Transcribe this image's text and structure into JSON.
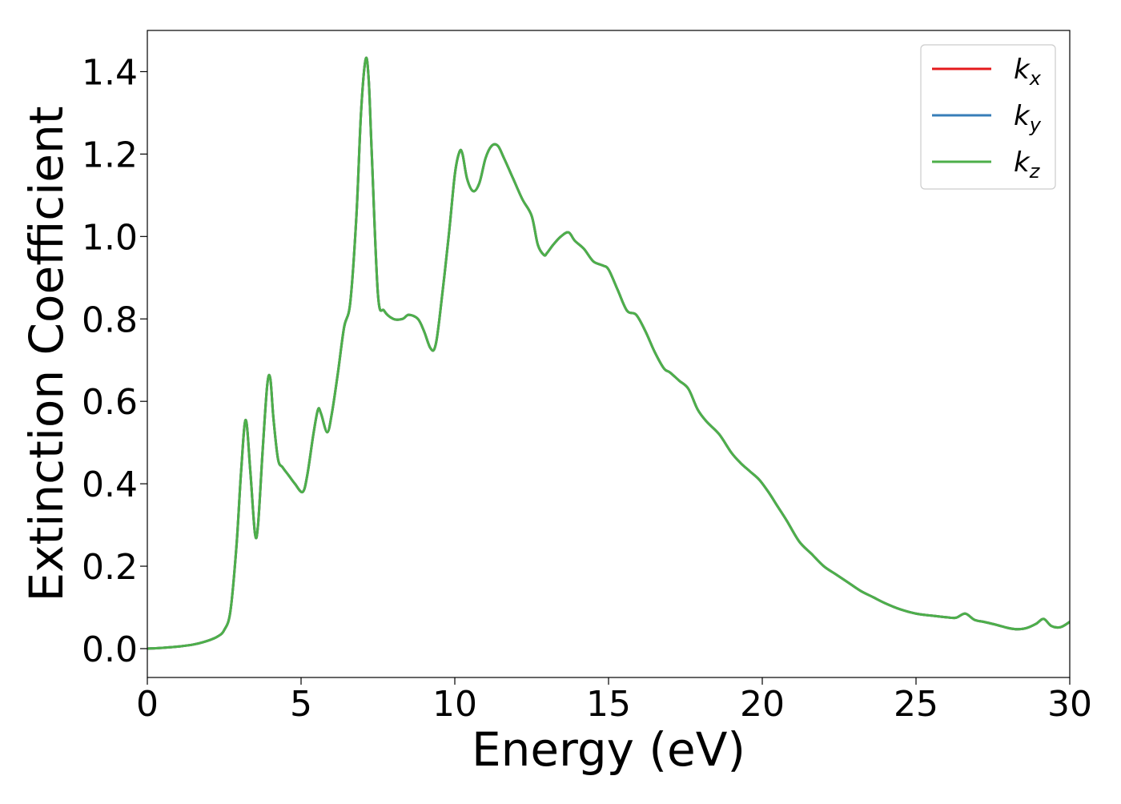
{
  "chart_data": {
    "type": "line",
    "title": "",
    "xlabel": "Energy (eV)",
    "ylabel": "Extinction Coefficient",
    "xlim": [
      0,
      30
    ],
    "ylim": [
      -0.07,
      1.5
    ],
    "xticks": [
      0,
      5,
      10,
      15,
      20,
      25,
      30
    ],
    "xtick_labels": [
      "0",
      "5",
      "10",
      "15",
      "20",
      "25",
      "30"
    ],
    "yticks": [
      0.0,
      0.2,
      0.4,
      0.6,
      0.8,
      1.0,
      1.2,
      1.4
    ],
    "ytick_labels": [
      "0.0",
      "0.2",
      "0.4",
      "0.6",
      "0.8",
      "1.0",
      "1.2",
      "1.4"
    ],
    "grid": false,
    "legend_position": "top-right",
    "legend": [
      {
        "base": "k",
        "sub": "x",
        "color": "#e41a1c"
      },
      {
        "base": "k",
        "sub": "y",
        "color": "#377eb8"
      },
      {
        "base": "k",
        "sub": "z",
        "color": "#4daf4a"
      }
    ],
    "x": [
      0.0,
      0.5,
      1.0,
      1.5,
      2.0,
      2.3,
      2.5,
      2.7,
      2.9,
      3.05,
      3.2,
      3.35,
      3.5,
      3.6,
      3.75,
      3.9,
      4.0,
      4.1,
      4.25,
      4.4,
      4.6,
      4.8,
      5.05,
      5.2,
      5.4,
      5.55,
      5.65,
      5.85,
      6.0,
      6.2,
      6.4,
      6.6,
      6.8,
      6.95,
      7.1,
      7.2,
      7.3,
      7.5,
      7.7,
      8.0,
      8.3,
      8.5,
      8.8,
      9.0,
      9.2,
      9.35,
      9.5,
      9.8,
      10.0,
      10.15,
      10.25,
      10.4,
      10.6,
      10.8,
      11.0,
      11.2,
      11.4,
      11.6,
      11.9,
      12.2,
      12.5,
      12.7,
      12.9,
      13.0,
      13.2,
      13.45,
      13.7,
      13.9,
      14.2,
      14.5,
      14.8,
      15.0,
      15.3,
      15.6,
      15.9,
      16.2,
      16.5,
      16.8,
      17.0,
      17.3,
      17.6,
      17.9,
      18.2,
      18.6,
      19.0,
      19.3,
      19.6,
      19.9,
      20.2,
      20.5,
      20.8,
      21.2,
      21.6,
      22.0,
      22.4,
      22.8,
      23.2,
      23.6,
      24.0,
      24.5,
      25.0,
      25.5,
      26.0,
      26.3,
      26.6,
      26.9,
      27.2,
      27.6,
      28.0,
      28.3,
      28.6,
      28.9,
      29.15,
      29.4,
      29.7,
      30.0
    ],
    "series": [
      {
        "name": "k_x",
        "color": "#e41a1c",
        "values": [
          0.0,
          0.002,
          0.005,
          0.01,
          0.02,
          0.03,
          0.045,
          0.09,
          0.25,
          0.43,
          0.555,
          0.43,
          0.28,
          0.3,
          0.48,
          0.64,
          0.655,
          0.56,
          0.46,
          0.44,
          0.42,
          0.4,
          0.38,
          0.42,
          0.52,
          0.58,
          0.57,
          0.525,
          0.57,
          0.67,
          0.78,
          0.84,
          1.05,
          1.3,
          1.43,
          1.38,
          1.2,
          0.86,
          0.82,
          0.8,
          0.8,
          0.81,
          0.8,
          0.77,
          0.73,
          0.73,
          0.8,
          1.0,
          1.15,
          1.205,
          1.2,
          1.14,
          1.11,
          1.13,
          1.19,
          1.22,
          1.22,
          1.19,
          1.14,
          1.09,
          1.05,
          0.98,
          0.955,
          0.96,
          0.98,
          1.0,
          1.01,
          0.99,
          0.97,
          0.94,
          0.93,
          0.92,
          0.87,
          0.82,
          0.81,
          0.77,
          0.72,
          0.68,
          0.67,
          0.65,
          0.63,
          0.58,
          0.55,
          0.52,
          0.475,
          0.45,
          0.43,
          0.41,
          0.38,
          0.345,
          0.31,
          0.26,
          0.23,
          0.2,
          0.18,
          0.16,
          0.14,
          0.125,
          0.11,
          0.095,
          0.085,
          0.08,
          0.076,
          0.075,
          0.085,
          0.07,
          0.065,
          0.058,
          0.05,
          0.047,
          0.05,
          0.06,
          0.072,
          0.055,
          0.052,
          0.065
        ]
      },
      {
        "name": "k_y",
        "color": "#377eb8",
        "values": [
          0.0,
          0.002,
          0.005,
          0.01,
          0.02,
          0.03,
          0.045,
          0.09,
          0.25,
          0.43,
          0.555,
          0.43,
          0.28,
          0.3,
          0.48,
          0.64,
          0.655,
          0.56,
          0.46,
          0.44,
          0.42,
          0.4,
          0.38,
          0.42,
          0.52,
          0.58,
          0.57,
          0.525,
          0.57,
          0.67,
          0.78,
          0.84,
          1.05,
          1.3,
          1.43,
          1.38,
          1.2,
          0.86,
          0.82,
          0.8,
          0.8,
          0.81,
          0.8,
          0.77,
          0.73,
          0.73,
          0.8,
          1.0,
          1.15,
          1.205,
          1.2,
          1.14,
          1.11,
          1.13,
          1.19,
          1.22,
          1.22,
          1.19,
          1.14,
          1.09,
          1.05,
          0.98,
          0.955,
          0.96,
          0.98,
          1.0,
          1.01,
          0.99,
          0.97,
          0.94,
          0.93,
          0.92,
          0.87,
          0.82,
          0.81,
          0.77,
          0.72,
          0.68,
          0.67,
          0.65,
          0.63,
          0.58,
          0.55,
          0.52,
          0.475,
          0.45,
          0.43,
          0.41,
          0.38,
          0.345,
          0.31,
          0.26,
          0.23,
          0.2,
          0.18,
          0.16,
          0.14,
          0.125,
          0.11,
          0.095,
          0.085,
          0.08,
          0.076,
          0.075,
          0.085,
          0.07,
          0.065,
          0.058,
          0.05,
          0.047,
          0.05,
          0.06,
          0.072,
          0.055,
          0.052,
          0.065
        ]
      },
      {
        "name": "k_z",
        "color": "#4daf4a",
        "values": [
          0.0,
          0.002,
          0.005,
          0.01,
          0.02,
          0.03,
          0.045,
          0.09,
          0.25,
          0.43,
          0.555,
          0.43,
          0.28,
          0.3,
          0.48,
          0.64,
          0.655,
          0.56,
          0.46,
          0.44,
          0.42,
          0.4,
          0.38,
          0.42,
          0.52,
          0.58,
          0.57,
          0.525,
          0.57,
          0.67,
          0.78,
          0.84,
          1.05,
          1.3,
          1.43,
          1.38,
          1.2,
          0.86,
          0.82,
          0.8,
          0.8,
          0.81,
          0.8,
          0.77,
          0.73,
          0.73,
          0.8,
          1.0,
          1.15,
          1.205,
          1.2,
          1.14,
          1.11,
          1.13,
          1.19,
          1.22,
          1.22,
          1.19,
          1.14,
          1.09,
          1.05,
          0.98,
          0.955,
          0.96,
          0.98,
          1.0,
          1.01,
          0.99,
          0.97,
          0.94,
          0.93,
          0.92,
          0.87,
          0.82,
          0.81,
          0.77,
          0.72,
          0.68,
          0.67,
          0.65,
          0.63,
          0.58,
          0.55,
          0.52,
          0.475,
          0.45,
          0.43,
          0.41,
          0.38,
          0.345,
          0.31,
          0.26,
          0.23,
          0.2,
          0.18,
          0.16,
          0.14,
          0.125,
          0.11,
          0.095,
          0.085,
          0.08,
          0.076,
          0.075,
          0.085,
          0.07,
          0.065,
          0.058,
          0.05,
          0.047,
          0.05,
          0.06,
          0.072,
          0.055,
          0.052,
          0.065
        ]
      }
    ]
  }
}
